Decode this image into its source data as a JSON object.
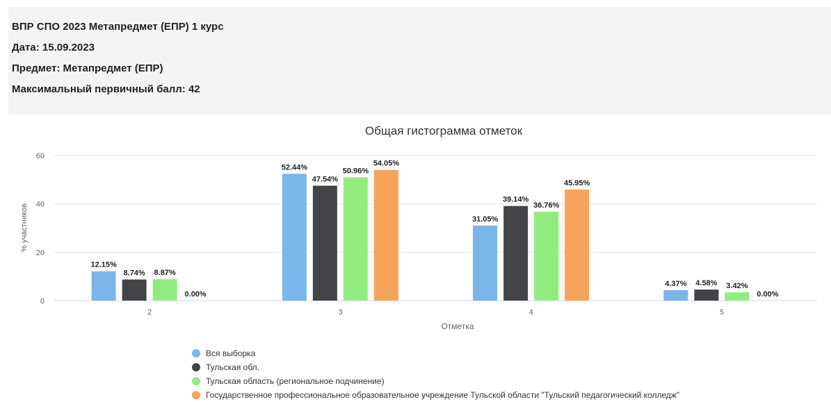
{
  "header": {
    "title": "ВПР СПО 2023 Метапредмет (ЕПР) 1 курс",
    "date": "Дата: 15.09.2023",
    "subject": "Предмет: Метапредмет (ЕПР)",
    "max_score": "Максимальный первичный балл: 42"
  },
  "chart_data": {
    "type": "bar",
    "title": "Общая гистограмма отметок",
    "xlabel": "Отметка",
    "ylabel": "% участников",
    "categories": [
      "2",
      "3",
      "4",
      "5"
    ],
    "ylim": [
      0,
      60
    ],
    "yticks": [
      0,
      20,
      40,
      60
    ],
    "grid": true,
    "legend_position": "bottom-left",
    "series": [
      {
        "name": "Вся выборка",
        "color": "#7cb5ec",
        "values": [
          12.15,
          52.44,
          31.05,
          4.37
        ],
        "labels": [
          "12.15%",
          "52.44%",
          "31.05%",
          "4.37%"
        ]
      },
      {
        "name": "Тульская обл.",
        "color": "#434348",
        "values": [
          8.74,
          47.54,
          39.14,
          4.58
        ],
        "labels": [
          "8.74%",
          "47.54%",
          "39.14%",
          "4.58%"
        ]
      },
      {
        "name": "Тульская область (региональное подчинение)",
        "color": "#90ed7d",
        "values": [
          8.87,
          50.96,
          36.76,
          3.42
        ],
        "labels": [
          "8.87%",
          "50.96%",
          "36.76%",
          "3.42%"
        ]
      },
      {
        "name": "Государственное профессиональное образовательное учреждение Тульской области \"Тульский педагогический колледж\"",
        "color": "#f7a35c",
        "values": [
          0.0,
          54.05,
          45.95,
          0.0
        ],
        "labels": [
          "0.00%",
          "54.05%",
          "45.95%",
          "0.00%"
        ]
      }
    ]
  }
}
